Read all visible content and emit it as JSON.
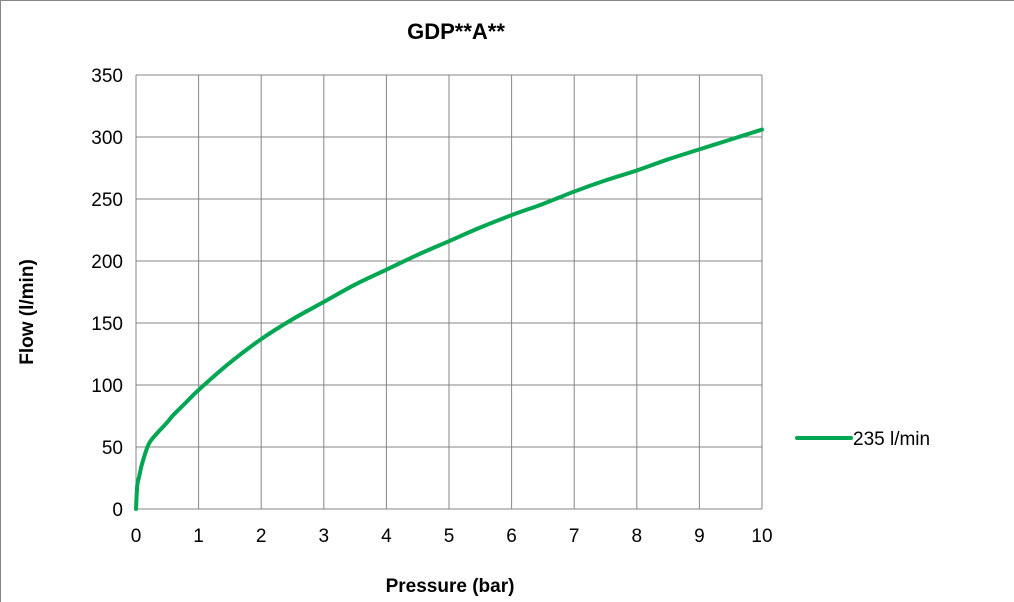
{
  "chart_data": {
    "type": "line",
    "title": "GDP**A**",
    "xlabel": "Pressure (bar)",
    "ylabel": "Flow (l/min)",
    "xlim": [
      0,
      10
    ],
    "ylim": [
      0,
      350
    ],
    "xticks": [
      "0",
      "1",
      "2",
      "3",
      "4",
      "5",
      "6",
      "7",
      "8",
      "9",
      "10"
    ],
    "yticks": [
      "0",
      "50",
      "100",
      "150",
      "200",
      "250",
      "300",
      "350"
    ],
    "grid": true,
    "legend_position": "right",
    "series": [
      {
        "name": "235 l/min",
        "color": "#00A651",
        "x": [
          0,
          0.02,
          0.05,
          0.1,
          0.2,
          0.3,
          0.5,
          0.6,
          0.8,
          1,
          1.5,
          2,
          2.5,
          3,
          3.5,
          4,
          4.5,
          5,
          5.5,
          6,
          6.5,
          7,
          7.5,
          8,
          8.5,
          9,
          9.5,
          10
        ],
        "y": [
          0,
          19,
          26,
          37,
          52,
          59,
          70,
          76,
          86,
          96,
          118,
          137,
          153,
          167,
          181,
          193,
          205,
          216,
          227,
          237,
          246,
          256,
          265,
          273,
          282,
          290,
          298,
          306
        ]
      }
    ]
  }
}
